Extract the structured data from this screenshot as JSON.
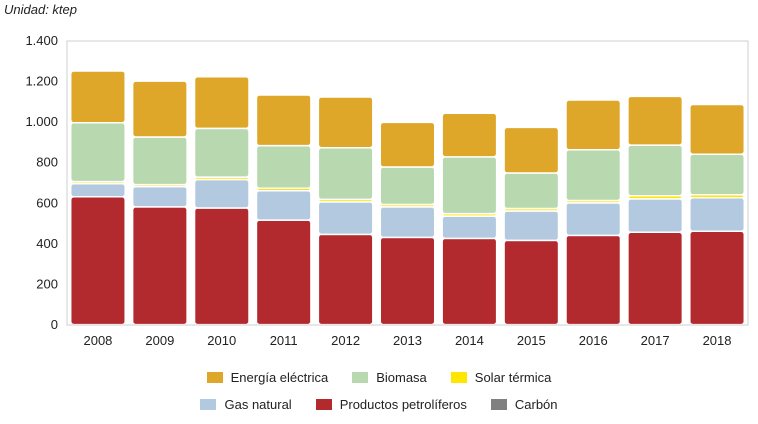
{
  "unit_label": "Unidad: ktep",
  "chart_data": {
    "type": "bar",
    "stacked": true,
    "categories": [
      "2008",
      "2009",
      "2010",
      "2011",
      "2012",
      "2013",
      "2014",
      "2015",
      "2016",
      "2017",
      "2018"
    ],
    "ylim": [
      0,
      1400
    ],
    "yticks": [
      0,
      200,
      400,
      600,
      800,
      1000,
      1200,
      1400
    ],
    "ytick_labels": [
      "0",
      "200",
      "400",
      "600",
      "800",
      "1.000",
      "1.200",
      "1.400"
    ],
    "grid": false,
    "legend_position": "bottom",
    "series": [
      {
        "name": "Carbón",
        "color": "#808080",
        "values": [
          2,
          2,
          2,
          2,
          2,
          2,
          2,
          2,
          2,
          2,
          2
        ]
      },
      {
        "name": "Productos petrolíferos",
        "color": "#b22a2e",
        "values": [
          630,
          580,
          575,
          515,
          445,
          430,
          425,
          415,
          440,
          455,
          460
        ]
      },
      {
        "name": "Gas natural",
        "color": "#b3c9df",
        "values": [
          65,
          100,
          140,
          145,
          160,
          150,
          110,
          145,
          160,
          165,
          165
        ]
      },
      {
        "name": "Solar térmica",
        "color": "#ffe600",
        "values": [
          10,
          10,
          12,
          12,
          12,
          12,
          12,
          12,
          12,
          15,
          15
        ]
      },
      {
        "name": "Biomasa",
        "color": "#b8d8b0",
        "values": [
          290,
          235,
          240,
          210,
          255,
          185,
          280,
          175,
          250,
          250,
          200
        ]
      },
      {
        "name": "Energía eléctrica",
        "color": "#dfa72a",
        "values": [
          255,
          275,
          255,
          250,
          250,
          220,
          215,
          225,
          245,
          240,
          245
        ]
      }
    ]
  },
  "legend": {
    "row1": [
      {
        "label": "Energía eléctrica",
        "color": "#dfa72a"
      },
      {
        "label": "Biomasa",
        "color": "#b8d8b0"
      },
      {
        "label": "Solar térmica",
        "color": "#ffe600"
      }
    ],
    "row2": [
      {
        "label": "Gas natural",
        "color": "#b3c9df"
      },
      {
        "label": "Productos petrolíferos",
        "color": "#b22a2e"
      },
      {
        "label": "Carbón",
        "color": "#808080"
      }
    ]
  }
}
